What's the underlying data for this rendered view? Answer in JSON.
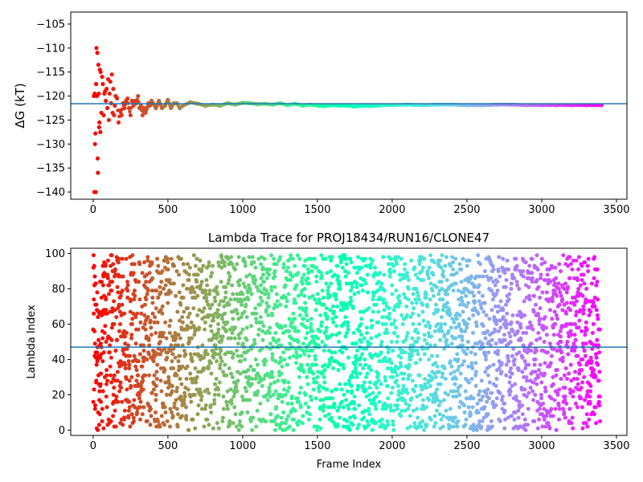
{
  "chart_data": [
    {
      "type": "scatter",
      "title": "",
      "xlabel": "",
      "ylabel": "ΔG (kT)",
      "xlim": [
        -150,
        3570
      ],
      "ylim": [
        -141.5,
        -102.5
      ],
      "xticks": [
        0,
        500,
        1000,
        1500,
        2000,
        2500,
        3000,
        3500
      ],
      "yticks": [
        -140,
        -135,
        -130,
        -125,
        -120,
        -115,
        -110,
        -105
      ],
      "grid": false,
      "legend": "none",
      "colormap": "rainbow",
      "hline": {
        "y": -121.6,
        "color": "#1f77b4"
      },
      "series": [
        {
          "x": [
            5,
            8,
            10,
            12,
            15,
            18,
            20,
            22,
            25,
            28,
            30,
            32,
            35,
            38,
            40,
            42,
            45,
            48,
            50,
            55,
            60,
            65,
            70,
            75,
            80,
            85,
            90,
            95,
            100,
            105,
            110,
            115,
            120,
            125,
            130,
            135,
            140,
            145,
            150,
            160,
            170,
            180,
            190,
            200,
            210,
            220,
            230,
            240,
            250,
            260,
            270,
            280,
            290,
            300,
            310,
            320,
            330,
            340,
            350,
            360,
            370,
            380,
            390,
            400,
            420,
            440,
            460,
            480,
            500,
            520,
            540,
            560,
            580,
            600,
            650,
            700,
            750,
            800,
            850,
            900,
            950,
            1000,
            1050,
            1100,
            1150,
            1200,
            1250,
            1300,
            1350,
            1400,
            1450,
            1500,
            1550,
            1600,
            1650,
            1700,
            1750,
            1800,
            1850,
            1900,
            1950,
            2000,
            2100,
            2200,
            2300,
            2400,
            2500,
            2600,
            2700,
            2800,
            2900,
            3000,
            3100,
            3200,
            3300,
            3400
          ],
          "y": [
            -120,
            -140,
            -119.5,
            -130,
            -127.8,
            -140,
            -117.5,
            -110,
            -120,
            -111,
            -133,
            -136,
            -113.5,
            -119.5,
            -126.5,
            -125.5,
            -114.5,
            -127.5,
            -115,
            -123.5,
            -116,
            -117.5,
            -124,
            -119.5,
            -119,
            -121,
            -118.5,
            -122.5,
            -116.5,
            -125,
            -119.5,
            -117,
            -121.5,
            -115.5,
            -123.5,
            -118.5,
            -124,
            -122,
            -120,
            -120.5,
            -125.5,
            -123,
            -124,
            -121.5,
            -122.5,
            -121,
            -120.5,
            -122.5,
            -124,
            -121,
            -122,
            -121,
            -121.5,
            -120,
            -122.5,
            -122,
            -124,
            -122.5,
            -123.5,
            -122.5,
            -121.5,
            -122,
            -121,
            -121.5,
            -122.5,
            -121,
            -122.5,
            -122,
            -120.8,
            -122.5,
            -121.5,
            -121.5,
            -122.5,
            -122,
            -121.3,
            -121.6,
            -122,
            -121.8,
            -122,
            -121.5,
            -121.8,
            -121.4,
            -121.5,
            -121.7,
            -121.6,
            -121.8,
            -121.5,
            -121.9,
            -121.6,
            -122,
            -121.8,
            -122,
            -122.1,
            -121.9,
            -122,
            -122,
            -122.2,
            -122,
            -122.1,
            -122,
            -121.9,
            -121.9,
            -121.8,
            -121.9,
            -121.8,
            -121.8,
            -121.9,
            -121.9,
            -121.8,
            -121.8,
            -121.9,
            -121.9,
            -121.9,
            -121.9,
            -121.9,
            -121.9
          ]
        }
      ]
    },
    {
      "type": "scatter",
      "title": "Lambda Trace for PROJ18434/RUN16/CLONE47",
      "xlabel": "Frame Index",
      "ylabel": "Lambda Index",
      "xlim": [
        -150,
        3570
      ],
      "ylim": [
        -3,
        103
      ],
      "xticks": [
        0,
        500,
        1000,
        1500,
        2000,
        2500,
        3000,
        3500
      ],
      "yticks": [
        0,
        20,
        40,
        60,
        80,
        100
      ],
      "grid": false,
      "legend": "none",
      "colormap": "rainbow",
      "hline": {
        "y": 47,
        "color": "#1f77b4"
      },
      "frame_range": [
        0,
        3390
      ],
      "lambda_range": [
        0,
        99
      ],
      "point_count": 3390
    }
  ]
}
